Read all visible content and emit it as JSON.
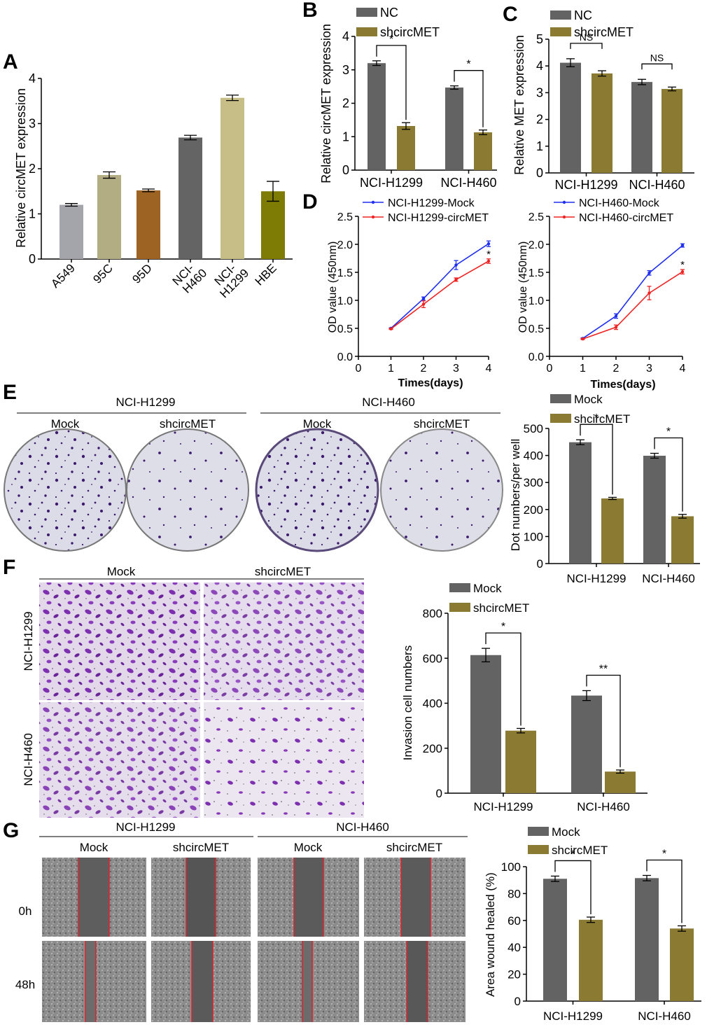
{
  "colors": {
    "dark": "#636363",
    "olive": "#8b7b32",
    "blue": "#1f2ef0",
    "red": "#ef2323",
    "a_bars": [
      "#a4a5ab",
      "#b3ad83",
      "#9c6323",
      "#646464",
      "#c6be86",
      "#7f7c05"
    ],
    "stain": "#3c1a6e",
    "transwell": "#7d2fb0"
  },
  "panel_letters": {
    "A": "A",
    "B": "B",
    "C": "C",
    "D": "D",
    "E": "E",
    "F": "F",
    "G": "G"
  },
  "image_labels": {
    "e": {
      "group1": "NCI-H1299",
      "group2": "NCI-H460",
      "mock1": "Mock",
      "sh1": "shcircMET",
      "mock2": "Mock",
      "sh2": "shcircMET"
    },
    "f": {
      "mock": "Mock",
      "sh": "shcircMET",
      "row1": "NCI-H1299",
      "row2": "NCI-H460"
    },
    "g": {
      "group1": "NCI-H1299",
      "group2": "NCI-H460",
      "mock1": "Mock",
      "sh1": "shcircMET",
      "mock2": "Mock",
      "sh2": "shcircMET",
      "row1": "0h",
      "row2": "48h"
    }
  },
  "chart_data": [
    {
      "id": "A",
      "type": "bar",
      "categories": [
        "A549",
        "95C",
        "95D",
        "NCI-H460",
        "NCI-H1299",
        "HBE"
      ],
      "values": [
        1.2,
        1.86,
        1.52,
        2.69,
        3.57,
        1.5
      ],
      "errors": [
        0.03,
        0.07,
        0.03,
        0.05,
        0.06,
        0.22
      ],
      "ylabel": "Relative circMET expression",
      "ylim": [
        0,
        4
      ],
      "yticks": [
        "0",
        "1",
        "2",
        "3",
        "4"
      ]
    },
    {
      "id": "B",
      "type": "bar",
      "categories": [
        "NCI-H1299",
        "NCI-H460"
      ],
      "series": [
        {
          "name": "NC",
          "values": [
            3.2,
            2.47
          ],
          "errors": [
            0.07,
            0.05
          ]
        },
        {
          "name": "shcircMET",
          "values": [
            1.32,
            1.13
          ],
          "errors": [
            0.1,
            0.07
          ]
        }
      ],
      "ylabel": "Relative circMET expression",
      "ylim": [
        0,
        4
      ],
      "yticks": [
        "0",
        "1",
        "2",
        "3",
        "4"
      ],
      "sig": [
        "*",
        "*"
      ]
    },
    {
      "id": "C",
      "type": "bar",
      "categories": [
        "NCI-H1299",
        "NCI-H460"
      ],
      "series": [
        {
          "name": "NC",
          "values": [
            4.12,
            3.4
          ],
          "errors": [
            0.15,
            0.1
          ]
        },
        {
          "name": "shcircMET",
          "values": [
            3.72,
            3.14
          ],
          "errors": [
            0.1,
            0.07
          ]
        }
      ],
      "ylabel": "Relative MET expression",
      "ylim": [
        0,
        5
      ],
      "yticks": [
        "0",
        "1",
        "2",
        "3",
        "4",
        "5"
      ],
      "sig": [
        "NS",
        "NS"
      ]
    },
    {
      "id": "D1",
      "type": "line",
      "x": [
        1,
        2,
        3,
        4
      ],
      "series": [
        {
          "name": "NCI-H1299-Mock",
          "values": [
            0.5,
            1.03,
            1.63,
            2.01
          ],
          "errors": [
            0.01,
            0.03,
            0.08,
            0.05
          ]
        },
        {
          "name": "NCI-H1299-circMET",
          "values": [
            0.49,
            0.93,
            1.37,
            1.7
          ],
          "errors": [
            0.01,
            0.06,
            0.03,
            0.04
          ]
        }
      ],
      "xlabel": "Times(days)",
      "ylabel": "OD value (450nm)",
      "xlim": [
        0,
        4
      ],
      "ylim": [
        0,
        2.5
      ],
      "xticks": [
        "0",
        "1",
        "2",
        "3",
        "4"
      ],
      "yticks": [
        "0.0",
        "0.5",
        "1.0",
        "1.5",
        "2.0",
        "2.5"
      ],
      "sig": "*"
    },
    {
      "id": "D2",
      "type": "line",
      "x": [
        1,
        2,
        3,
        4
      ],
      "series": [
        {
          "name": "NCI-H460-Mock",
          "values": [
            0.32,
            0.72,
            1.49,
            1.98
          ],
          "errors": [
            0.01,
            0.04,
            0.04,
            0.03
          ]
        },
        {
          "name": "NCI-H460-circMET",
          "values": [
            0.31,
            0.52,
            1.13,
            1.51
          ],
          "errors": [
            0.01,
            0.04,
            0.12,
            0.04
          ]
        }
      ],
      "xlabel": "Times(days)",
      "ylabel": "OD value (450nm)",
      "xlim": [
        0,
        4
      ],
      "ylim": [
        0,
        2.5
      ],
      "xticks": [
        "0",
        "1",
        "2",
        "3",
        "4"
      ],
      "yticks": [
        "0.0",
        "0.5",
        "1.0",
        "1.5",
        "2.0",
        "2.5"
      ],
      "sig": "*"
    },
    {
      "id": "E",
      "type": "bar",
      "categories": [
        "NCI-H1299",
        "NCI-H460"
      ],
      "series": [
        {
          "name": "Mock",
          "values": [
            449,
            399
          ],
          "errors": [
            9,
            9
          ]
        },
        {
          "name": "shcircMET",
          "values": [
            241,
            175
          ],
          "errors": [
            4,
            7
          ]
        }
      ],
      "ylabel": "Dot numbers/per well",
      "ylim": [
        0,
        500
      ],
      "yticks": [
        "0",
        "100",
        "200",
        "300",
        "400",
        "500"
      ],
      "sig": [
        "*",
        "*"
      ]
    },
    {
      "id": "F",
      "type": "bar",
      "categories": [
        "NCI-H1299",
        "NCI-H460"
      ],
      "series": [
        {
          "name": "Mock",
          "values": [
            614,
            434
          ],
          "errors": [
            30,
            22
          ]
        },
        {
          "name": "shcircMET",
          "values": [
            278,
            96
          ],
          "errors": [
            10,
            7
          ]
        }
      ],
      "ylabel": "Invasion cell numbers",
      "ylim": [
        0,
        800
      ],
      "yticks": [
        "0",
        "200",
        "400",
        "600",
        "800"
      ],
      "sig": [
        "*",
        "**"
      ]
    },
    {
      "id": "G",
      "type": "bar",
      "categories": [
        "NCI-H1299",
        "NCI-H460"
      ],
      "series": [
        {
          "name": "Mock",
          "values": [
            91,
            91.5
          ],
          "errors": [
            2,
            2
          ]
        },
        {
          "name": "shcircMET",
          "values": [
            60.5,
            54
          ],
          "errors": [
            2,
            2
          ]
        }
      ],
      "ylabel": "Area wound healed (%)",
      "ylim": [
        0,
        100
      ],
      "yticks": [
        "0",
        "20",
        "40",
        "60",
        "80",
        "100"
      ],
      "sig": [
        "*",
        "*"
      ]
    }
  ]
}
